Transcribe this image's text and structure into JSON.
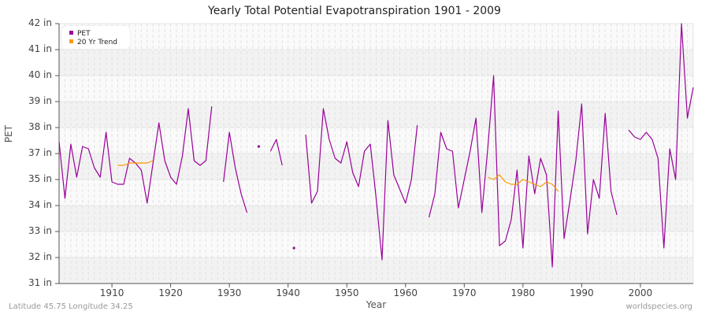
{
  "chart": {
    "title": "Yearly Total Potential Evapotranspiration 1901 - 2009",
    "ylabel": "PET",
    "xlabel": "Year",
    "footer_left": "Latitude 45.75 Longitude 34.25",
    "footer_right": "worldspecies.org",
    "legend": [
      {
        "label": "PET",
        "color": "#990099"
      },
      {
        "label": "20 Yr Trend",
        "color": "#ff9900"
      }
    ],
    "y_ticks": [
      "42 in",
      "41 in",
      "40 in",
      "39 in",
      "38 in",
      "37 in",
      "35 in",
      "34 in",
      "33 in",
      "32 in",
      "31 in"
    ],
    "x_ticks": [
      "1910",
      "1920",
      "1930",
      "1940",
      "1950",
      "1960",
      "1970",
      "1980",
      "1990",
      "2000"
    ]
  },
  "chart_data": {
    "type": "line",
    "title": "Yearly Total Potential Evapotranspiration 1901 - 2009",
    "xlabel": "Year",
    "ylabel": "PET",
    "ylim": [
      31,
      42
    ],
    "xlim": [
      1901,
      2009
    ],
    "y_tick_values": [
      42,
      40.9,
      39.8,
      38.7,
      37.6,
      36.5,
      35.4,
      34.3,
      33.2,
      32.1,
      31
    ],
    "y_tick_labels": [
      "42 in",
      "41 in",
      "40 in",
      "39 in",
      "38 in",
      "37 in",
      "35 in",
      "34 in",
      "33 in",
      "32 in",
      "31 in"
    ],
    "x_tick_labels": [
      "1910",
      "1920",
      "1930",
      "1940",
      "1950",
      "1960",
      "1970",
      "1980",
      "1990",
      "2000"
    ],
    "legend_position": "top-left",
    "grid": true,
    "series": [
      {
        "name": "PET",
        "color": "#990099",
        "points": [
          [
            1901,
            37.0
          ],
          [
            1902,
            34.6
          ],
          [
            1903,
            36.9
          ],
          [
            1904,
            35.5
          ],
          [
            1905,
            36.8
          ],
          [
            1906,
            36.7
          ],
          [
            1907,
            35.9
          ],
          [
            1908,
            35.5
          ],
          [
            1909,
            37.4
          ],
          [
            1910,
            35.3
          ],
          [
            1911,
            35.2
          ],
          [
            1912,
            35.2
          ],
          [
            1913,
            36.3
          ],
          [
            1914,
            36.1
          ],
          [
            1915,
            35.8
          ],
          [
            1916,
            34.4
          ],
          [
            1917,
            36.1
          ],
          [
            1918,
            37.8
          ],
          [
            1919,
            36.2
          ],
          [
            1920,
            35.5
          ],
          [
            1921,
            35.2
          ],
          [
            1922,
            36.4
          ],
          [
            1923,
            38.4
          ],
          [
            1924,
            36.2
          ],
          [
            1925,
            36.0
          ],
          [
            1926,
            36.2
          ],
          [
            1927,
            38.5
          ],
          [
            1928,
            null
          ],
          [
            1929,
            35.3
          ],
          [
            1930,
            37.4
          ],
          [
            1931,
            35.9
          ],
          [
            1932,
            34.8
          ],
          [
            1933,
            34.0
          ],
          [
            1934,
            null
          ],
          [
            1935,
            36.8
          ],
          [
            1936,
            null
          ],
          [
            1937,
            36.6
          ],
          [
            1938,
            37.1
          ],
          [
            1939,
            36.0
          ],
          [
            1940,
            null
          ],
          [
            1941,
            32.5
          ],
          [
            1942,
            null
          ],
          [
            1943,
            37.3
          ],
          [
            1944,
            34.4
          ],
          [
            1945,
            34.9
          ],
          [
            1946,
            38.4
          ],
          [
            1947,
            37.1
          ],
          [
            1948,
            36.3
          ],
          [
            1949,
            36.1
          ],
          [
            1950,
            37.0
          ],
          [
            1951,
            35.7
          ],
          [
            1952,
            35.1
          ],
          [
            1953,
            36.6
          ],
          [
            1954,
            36.9
          ],
          [
            1955,
            34.6
          ],
          [
            1956,
            32.0
          ],
          [
            1957,
            37.9
          ],
          [
            1958,
            35.6
          ],
          [
            1959,
            35.0
          ],
          [
            1960,
            34.4
          ],
          [
            1961,
            35.4
          ],
          [
            1962,
            37.7
          ],
          [
            1963,
            null
          ],
          [
            1964,
            33.8
          ],
          [
            1965,
            34.8
          ],
          [
            1966,
            37.4
          ],
          [
            1967,
            36.7
          ],
          [
            1968,
            36.6
          ],
          [
            1969,
            34.2
          ],
          [
            1970,
            35.4
          ],
          [
            1971,
            36.6
          ],
          [
            1972,
            38.0
          ],
          [
            1973,
            34.0
          ],
          [
            1974,
            36.7
          ],
          [
            1975,
            39.8
          ],
          [
            1976,
            32.6
          ],
          [
            1977,
            32.8
          ],
          [
            1978,
            33.7
          ],
          [
            1979,
            35.8
          ],
          [
            1980,
            32.5
          ],
          [
            1981,
            36.4
          ],
          [
            1982,
            34.8
          ],
          [
            1983,
            36.3
          ],
          [
            1984,
            35.6
          ],
          [
            1985,
            31.7
          ],
          [
            1986,
            38.3
          ],
          [
            1987,
            32.9
          ],
          [
            1988,
            34.5
          ],
          [
            1989,
            36.2
          ],
          [
            1990,
            38.6
          ],
          [
            1991,
            33.1
          ],
          [
            1992,
            35.4
          ],
          [
            1993,
            34.6
          ],
          [
            1994,
            38.2
          ],
          [
            1995,
            34.9
          ],
          [
            1996,
            33.9
          ],
          [
            1997,
            null
          ],
          [
            1998,
            37.5
          ],
          [
            1999,
            37.2
          ],
          [
            2000,
            37.1
          ],
          [
            2001,
            37.4
          ],
          [
            2002,
            37.1
          ],
          [
            2003,
            36.3
          ],
          [
            2004,
            32.5
          ],
          [
            2005,
            36.7
          ],
          [
            2006,
            35.4
          ],
          [
            2007,
            42.0
          ],
          [
            2008,
            38.0
          ],
          [
            2009,
            39.3
          ]
        ]
      },
      {
        "name": "20 Yr Trend",
        "color": "#ff9900",
        "points": [
          [
            1911,
            36.0
          ],
          [
            1912,
            36.0
          ],
          [
            1913,
            36.1
          ],
          [
            1914,
            36.1
          ],
          [
            1915,
            36.1
          ],
          [
            1916,
            36.1
          ],
          [
            1917,
            36.2
          ],
          [
            1974,
            35.5
          ],
          [
            1975,
            35.4
          ],
          [
            1976,
            35.6
          ],
          [
            1977,
            35.3
          ],
          [
            1978,
            35.2
          ],
          [
            1979,
            35.2
          ],
          [
            1980,
            35.4
          ],
          [
            1981,
            35.3
          ],
          [
            1982,
            35.2
          ],
          [
            1983,
            35.1
          ],
          [
            1984,
            35.3
          ],
          [
            1985,
            35.2
          ],
          [
            1986,
            34.9
          ]
        ]
      }
    ]
  }
}
